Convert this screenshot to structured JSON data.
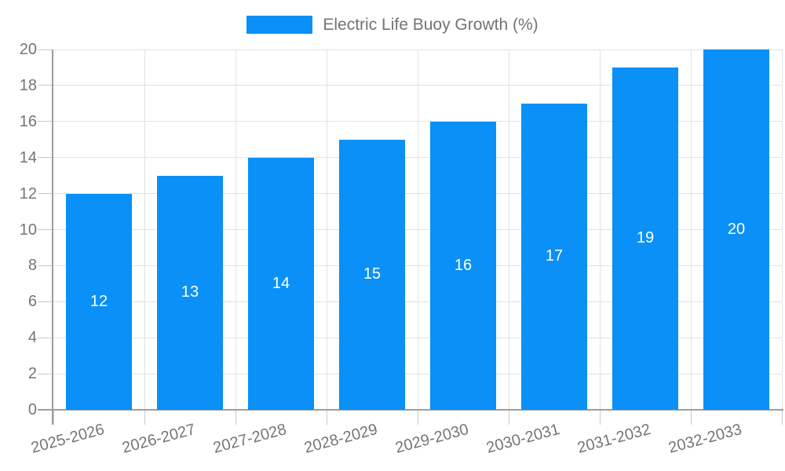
{
  "legend": {
    "label": "Electric Life Buoy Growth (%)",
    "swatch_color": "#0a90f7",
    "text_color": "#737373"
  },
  "chart_data": {
    "type": "bar",
    "title": "Electric Life Buoy Growth (%)",
    "legend_label": "Electric Life Buoy Growth (%)",
    "legend_position": "top-center",
    "categories": [
      "2025-2026",
      "2026-2027",
      "2027-2028",
      "2028-2029",
      "2029-2030",
      "2030-2031",
      "2031-2032",
      "2032-2033"
    ],
    "values": [
      12,
      13,
      14,
      15,
      16,
      17,
      19,
      20
    ],
    "xlabel": "",
    "ylabel": "",
    "ylim": [
      0,
      20
    ],
    "ytick_step": 2,
    "yticks": [
      0,
      2,
      4,
      6,
      8,
      10,
      12,
      14,
      16,
      18,
      20
    ],
    "grid": true,
    "bar_color": "#0a90f7",
    "bar_label_color": "#ffffff",
    "grid_color": "#e2e2e2",
    "tick_color": "#c9c9c9",
    "axis_color": "#9e9e9e",
    "tick_label_color": "#757575"
  }
}
